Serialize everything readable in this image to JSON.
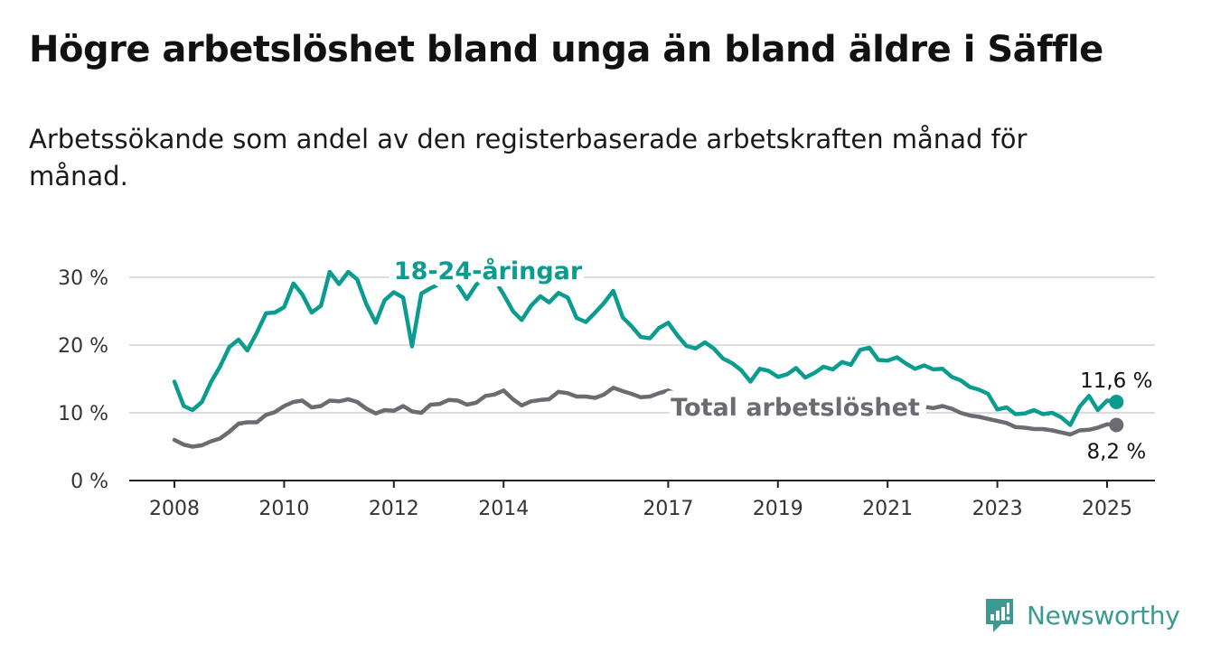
{
  "title": "Högre arbetslöshet bland unga än bland äldre i Säffle",
  "subtitle": "Arbetssökande som andel av den registerbaserade arbetskraften månad för månad.",
  "brand": {
    "name": "Newsworthy",
    "icon": "newsworthy-logo-icon",
    "color": "#3a9a92"
  },
  "chart_data": {
    "type": "line",
    "ylim": [
      0,
      30
    ],
    "xlim": [
      2007.8,
      2025.7
    ],
    "y_ticks": [
      {
        "value": 0,
        "label": "0 %"
      },
      {
        "value": 10,
        "label": "10 %"
      },
      {
        "value": 20,
        "label": "20 %"
      },
      {
        "value": 30,
        "label": "30 %"
      }
    ],
    "x_ticks": [
      {
        "value": 2008,
        "label": "2008"
      },
      {
        "value": 2010,
        "label": "2010"
      },
      {
        "value": 2012,
        "label": "2012"
      },
      {
        "value": 2014,
        "label": "2014"
      },
      {
        "value": 2017,
        "label": "2017"
      },
      {
        "value": 2019,
        "label": "2019"
      },
      {
        "value": 2021,
        "label": "2021"
      },
      {
        "value": 2023,
        "label": "2023"
      },
      {
        "value": 2025,
        "label": "2025"
      }
    ],
    "grid": true,
    "series": [
      {
        "name": "18-24-åringar",
        "color": "#0a9c8f",
        "end_label": "11,6 %",
        "points": [
          [
            2008.0,
            14.6
          ],
          [
            2008.17,
            11.0
          ],
          [
            2008.33,
            10.4
          ],
          [
            2008.5,
            11.6
          ],
          [
            2008.67,
            14.6
          ],
          [
            2008.83,
            16.8
          ],
          [
            2009.0,
            19.7
          ],
          [
            2009.17,
            20.8
          ],
          [
            2009.33,
            19.2
          ],
          [
            2009.5,
            21.8
          ],
          [
            2009.67,
            24.7
          ],
          [
            2009.83,
            24.8
          ],
          [
            2010.0,
            25.6
          ],
          [
            2010.17,
            29.1
          ],
          [
            2010.33,
            27.5
          ],
          [
            2010.5,
            24.8
          ],
          [
            2010.67,
            25.8
          ],
          [
            2010.83,
            30.8
          ],
          [
            2011.0,
            29.0
          ],
          [
            2011.17,
            30.8
          ],
          [
            2011.33,
            29.7
          ],
          [
            2011.5,
            26.0
          ],
          [
            2011.67,
            23.3
          ],
          [
            2011.83,
            26.6
          ],
          [
            2012.0,
            27.8
          ],
          [
            2012.17,
            27.0
          ],
          [
            2012.33,
            19.8
          ],
          [
            2012.5,
            27.6
          ],
          [
            2012.67,
            28.4
          ],
          [
            2012.83,
            29.0
          ],
          [
            2013.0,
            29.5
          ],
          [
            2013.17,
            28.8
          ],
          [
            2013.33,
            26.8
          ],
          [
            2013.5,
            28.9
          ],
          [
            2013.67,
            30.0
          ],
          [
            2013.83,
            29.7
          ],
          [
            2014.0,
            27.5
          ],
          [
            2014.17,
            25.0
          ],
          [
            2014.33,
            23.7
          ],
          [
            2014.5,
            25.8
          ],
          [
            2014.67,
            27.2
          ],
          [
            2014.83,
            26.3
          ],
          [
            2015.0,
            27.7
          ],
          [
            2015.17,
            27.0
          ],
          [
            2015.33,
            24.0
          ],
          [
            2015.5,
            23.4
          ],
          [
            2015.67,
            24.8
          ],
          [
            2015.83,
            26.2
          ],
          [
            2016.0,
            28.0
          ],
          [
            2016.17,
            24.1
          ],
          [
            2016.33,
            22.8
          ],
          [
            2016.5,
            21.2
          ],
          [
            2016.67,
            21.0
          ],
          [
            2016.83,
            22.5
          ],
          [
            2017.0,
            23.3
          ],
          [
            2017.17,
            21.4
          ],
          [
            2017.33,
            19.9
          ],
          [
            2017.5,
            19.5
          ],
          [
            2017.67,
            20.4
          ],
          [
            2017.83,
            19.5
          ],
          [
            2018.0,
            18.0
          ],
          [
            2018.17,
            17.3
          ],
          [
            2018.33,
            16.3
          ],
          [
            2018.5,
            14.6
          ],
          [
            2018.67,
            16.5
          ],
          [
            2018.83,
            16.2
          ],
          [
            2019.0,
            15.3
          ],
          [
            2019.17,
            15.7
          ],
          [
            2019.33,
            16.6
          ],
          [
            2019.5,
            15.2
          ],
          [
            2019.67,
            15.9
          ],
          [
            2019.83,
            16.8
          ],
          [
            2020.0,
            16.4
          ],
          [
            2020.17,
            17.5
          ],
          [
            2020.33,
            17.1
          ],
          [
            2020.5,
            19.3
          ],
          [
            2020.67,
            19.6
          ],
          [
            2020.83,
            17.8
          ],
          [
            2021.0,
            17.7
          ],
          [
            2021.17,
            18.2
          ],
          [
            2021.33,
            17.3
          ],
          [
            2021.5,
            16.5
          ],
          [
            2021.67,
            17.0
          ],
          [
            2021.83,
            16.4
          ],
          [
            2022.0,
            16.5
          ],
          [
            2022.17,
            15.3
          ],
          [
            2022.33,
            14.8
          ],
          [
            2022.5,
            13.8
          ],
          [
            2022.67,
            13.4
          ],
          [
            2022.83,
            12.8
          ],
          [
            2023.0,
            10.5
          ],
          [
            2023.17,
            10.8
          ],
          [
            2023.33,
            9.8
          ],
          [
            2023.5,
            9.9
          ],
          [
            2023.67,
            10.4
          ],
          [
            2023.83,
            9.8
          ],
          [
            2024.0,
            10.0
          ],
          [
            2024.17,
            9.3
          ],
          [
            2024.33,
            8.2
          ],
          [
            2024.5,
            10.9
          ],
          [
            2024.67,
            12.5
          ],
          [
            2024.83,
            10.4
          ],
          [
            2025.0,
            11.8
          ],
          [
            2025.17,
            11.6
          ]
        ]
      },
      {
        "name": "Total arbetslöshet",
        "color": "#6b6b72",
        "end_label": "8,2 %",
        "points": [
          [
            2008.0,
            6.0
          ],
          [
            2008.17,
            5.3
          ],
          [
            2008.33,
            5.0
          ],
          [
            2008.5,
            5.2
          ],
          [
            2008.67,
            5.8
          ],
          [
            2008.83,
            6.2
          ],
          [
            2009.0,
            7.2
          ],
          [
            2009.17,
            8.4
          ],
          [
            2009.33,
            8.6
          ],
          [
            2009.5,
            8.6
          ],
          [
            2009.67,
            9.7
          ],
          [
            2009.83,
            10.1
          ],
          [
            2010.0,
            11.0
          ],
          [
            2010.17,
            11.6
          ],
          [
            2010.33,
            11.8
          ],
          [
            2010.5,
            10.8
          ],
          [
            2010.67,
            11.0
          ],
          [
            2010.83,
            11.8
          ],
          [
            2011.0,
            11.7
          ],
          [
            2011.17,
            12.0
          ],
          [
            2011.33,
            11.6
          ],
          [
            2011.5,
            10.6
          ],
          [
            2011.67,
            9.9
          ],
          [
            2011.83,
            10.4
          ],
          [
            2012.0,
            10.3
          ],
          [
            2012.17,
            11.0
          ],
          [
            2012.33,
            10.2
          ],
          [
            2012.5,
            10.0
          ],
          [
            2012.67,
            11.2
          ],
          [
            2012.83,
            11.3
          ],
          [
            2013.0,
            11.9
          ],
          [
            2013.17,
            11.8
          ],
          [
            2013.33,
            11.2
          ],
          [
            2013.5,
            11.5
          ],
          [
            2013.67,
            12.5
          ],
          [
            2013.83,
            12.7
          ],
          [
            2014.0,
            13.3
          ],
          [
            2014.17,
            12.0
          ],
          [
            2014.33,
            11.1
          ],
          [
            2014.5,
            11.7
          ],
          [
            2014.67,
            11.9
          ],
          [
            2014.83,
            12.0
          ],
          [
            2015.0,
            13.1
          ],
          [
            2015.17,
            12.9
          ],
          [
            2015.33,
            12.4
          ],
          [
            2015.5,
            12.4
          ],
          [
            2015.67,
            12.2
          ],
          [
            2015.83,
            12.7
          ],
          [
            2016.0,
            13.7
          ],
          [
            2016.17,
            13.2
          ],
          [
            2016.33,
            12.8
          ],
          [
            2016.5,
            12.3
          ],
          [
            2016.67,
            12.4
          ],
          [
            2016.83,
            12.9
          ],
          [
            2017.0,
            13.3
          ],
          [
            2017.17,
            12.7
          ],
          [
            2017.33,
            12.4
          ],
          [
            2017.5,
            12.0
          ],
          [
            2017.67,
            12.2
          ],
          [
            2017.83,
            12.1
          ],
          [
            2018.0,
            11.8
          ],
          [
            2018.17,
            11.5
          ],
          [
            2018.33,
            11.2
          ],
          [
            2018.5,
            11.0
          ],
          [
            2018.67,
            11.3
          ],
          [
            2018.83,
            11.4
          ],
          [
            2019.0,
            11.1
          ],
          [
            2019.17,
            11.0
          ],
          [
            2019.33,
            11.2
          ],
          [
            2019.5,
            10.8
          ],
          [
            2019.67,
            11.0
          ],
          [
            2019.83,
            11.2
          ],
          [
            2020.0,
            11.3
          ],
          [
            2020.17,
            11.6
          ],
          [
            2020.33,
            11.8
          ],
          [
            2020.5,
            12.0
          ],
          [
            2020.67,
            11.8
          ],
          [
            2020.83,
            11.4
          ],
          [
            2021.0,
            11.3
          ],
          [
            2021.17,
            11.4
          ],
          [
            2021.33,
            11.0
          ],
          [
            2021.5,
            10.7
          ],
          [
            2021.67,
            10.9
          ],
          [
            2021.83,
            10.7
          ],
          [
            2022.0,
            11.0
          ],
          [
            2022.17,
            10.6
          ],
          [
            2022.33,
            10.0
          ],
          [
            2022.5,
            9.6
          ],
          [
            2022.67,
            9.4
          ],
          [
            2022.83,
            9.1
          ],
          [
            2023.0,
            8.8
          ],
          [
            2023.17,
            8.5
          ],
          [
            2023.33,
            7.9
          ],
          [
            2023.5,
            7.8
          ],
          [
            2023.67,
            7.6
          ],
          [
            2023.83,
            7.6
          ],
          [
            2024.0,
            7.4
          ],
          [
            2024.17,
            7.1
          ],
          [
            2024.33,
            6.8
          ],
          [
            2024.5,
            7.4
          ],
          [
            2024.67,
            7.5
          ],
          [
            2024.83,
            7.8
          ],
          [
            2025.0,
            8.3
          ],
          [
            2025.17,
            8.2
          ]
        ]
      }
    ]
  }
}
